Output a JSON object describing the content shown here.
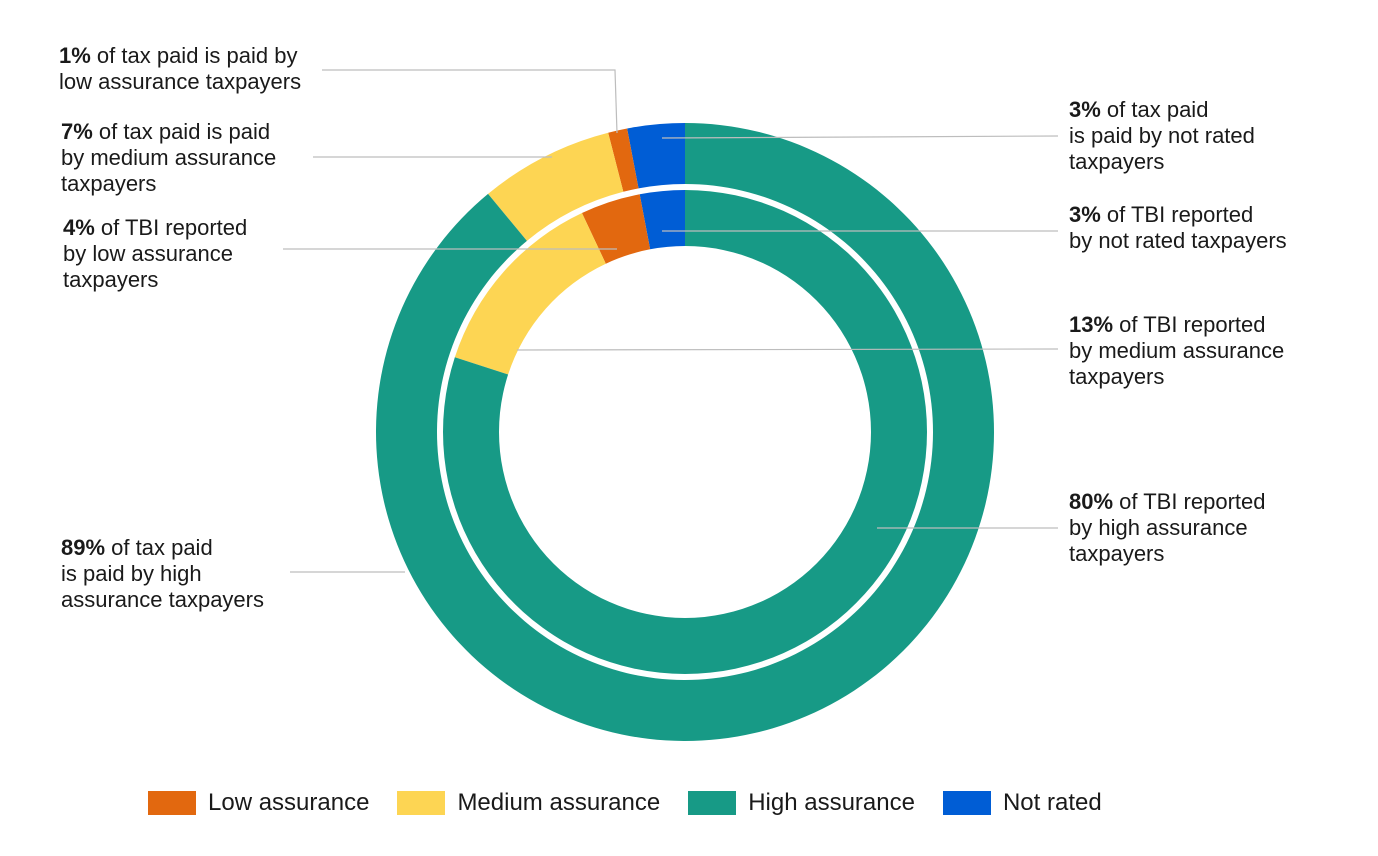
{
  "chart_data": {
    "type": "pie",
    "variant": "double-donut",
    "categories": [
      "Not rated",
      "Low assurance",
      "Medium assurance",
      "High assurance"
    ],
    "colors": {
      "Low assurance": "#E2680F",
      "Medium assurance": "#FDD553",
      "High assurance": "#179A86",
      "Not rated": "#005DD5"
    },
    "series": [
      {
        "name": "Tax paid",
        "ring": "outer",
        "values": [
          3,
          1,
          7,
          89
        ]
      },
      {
        "name": "TBI reported",
        "ring": "inner",
        "values": [
          3,
          4,
          13,
          80
        ]
      }
    ],
    "legend": {
      "position": "bottom",
      "items": [
        "Low assurance",
        "Medium assurance",
        "High assurance",
        "Not rated"
      ]
    },
    "annotations": [
      {
        "id": "tax-low",
        "bold": "1%",
        "lines": [
          " of tax paid is paid by",
          "low assurance taxpayers"
        ]
      },
      {
        "id": "tax-medium",
        "bold": "7%",
        "lines": [
          " of tax paid is paid",
          "by medium assurance",
          "taxpayers"
        ]
      },
      {
        "id": "tbi-low",
        "bold": "4%",
        "lines": [
          " of TBI reported",
          "by low assurance",
          "taxpayers"
        ]
      },
      {
        "id": "tax-high",
        "bold": "89%",
        "lines": [
          " of tax paid",
          "is paid by high",
          "assurance taxpayers"
        ]
      },
      {
        "id": "tax-notrated",
        "bold": "3%",
        "lines": [
          " of tax paid",
          "is paid by not rated",
          "taxpayers"
        ]
      },
      {
        "id": "tbi-notrated",
        "bold": "3%",
        "lines": [
          " of TBI reported",
          "by not rated taxpayers"
        ]
      },
      {
        "id": "tbi-medium",
        "bold": "13%",
        "lines": [
          " of TBI reported",
          "by medium assurance",
          "taxpayers"
        ]
      },
      {
        "id": "tbi-high",
        "bold": "80%",
        "lines": [
          " of TBI reported",
          "by high assurance",
          "taxpayers"
        ]
      }
    ]
  }
}
